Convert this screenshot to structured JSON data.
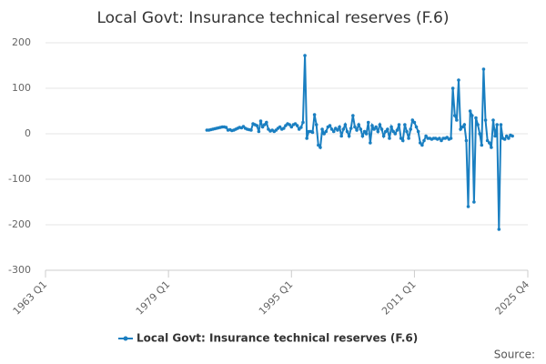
{
  "chart_data": {
    "type": "line",
    "title": "Local Govt: Insurance technical reserves (F.6)",
    "source": "Source:",
    "xlim": [
      "1963 Q1",
      "2025 Q4"
    ],
    "xticks": [
      "1963 Q1",
      "1979 Q1",
      "1995 Q1",
      "2011 Q1",
      "2025 Q4"
    ],
    "ylim": [
      -300,
      200
    ],
    "yticks": [
      200,
      100,
      0,
      -100,
      -200,
      -300
    ],
    "grid": true,
    "legend": "bottom",
    "x": [
      "1984 Q1",
      "1984 Q2",
      "1984 Q3",
      "1984 Q4",
      "1985 Q1",
      "1985 Q2",
      "1985 Q3",
      "1985 Q4",
      "1986 Q1",
      "1986 Q2",
      "1986 Q3",
      "1986 Q4",
      "1987 Q1",
      "1987 Q2",
      "1987 Q3",
      "1987 Q4",
      "1988 Q1",
      "1988 Q2",
      "1988 Q3",
      "1988 Q4",
      "1989 Q1",
      "1989 Q2",
      "1989 Q3",
      "1989 Q4",
      "1990 Q1",
      "1990 Q2",
      "1990 Q3",
      "1990 Q4",
      "1991 Q1",
      "1991 Q2",
      "1991 Q3",
      "1991 Q4",
      "1992 Q1",
      "1992 Q2",
      "1992 Q3",
      "1992 Q4",
      "1993 Q1",
      "1993 Q2",
      "1993 Q3",
      "1993 Q4",
      "1994 Q1",
      "1994 Q2",
      "1994 Q3",
      "1994 Q4",
      "1995 Q1",
      "1995 Q2",
      "1995 Q3",
      "1995 Q4",
      "1996 Q1",
      "1996 Q2",
      "1996 Q3",
      "1996 Q4",
      "1997 Q1",
      "1997 Q2",
      "1997 Q3",
      "1997 Q4",
      "1998 Q1",
      "1998 Q2",
      "1998 Q3",
      "1998 Q4",
      "1999 Q1",
      "1999 Q2",
      "1999 Q3",
      "1999 Q4",
      "2000 Q1",
      "2000 Q2",
      "2000 Q3",
      "2000 Q4",
      "2001 Q1",
      "2001 Q2",
      "2001 Q3",
      "2001 Q4",
      "2002 Q1",
      "2002 Q2",
      "2002 Q3",
      "2002 Q4",
      "2003 Q1",
      "2003 Q2",
      "2003 Q3",
      "2003 Q4",
      "2004 Q1",
      "2004 Q2",
      "2004 Q3",
      "2004 Q4",
      "2005 Q1",
      "2005 Q2",
      "2005 Q3",
      "2005 Q4",
      "2006 Q1",
      "2006 Q2",
      "2006 Q3",
      "2006 Q4",
      "2007 Q1",
      "2007 Q2",
      "2007 Q3",
      "2007 Q4",
      "2008 Q1",
      "2008 Q2",
      "2008 Q3",
      "2008 Q4",
      "2009 Q1",
      "2009 Q2",
      "2009 Q3",
      "2009 Q4",
      "2010 Q1",
      "2010 Q2",
      "2010 Q3",
      "2010 Q4",
      "2011 Q1",
      "2011 Q2",
      "2011 Q3",
      "2011 Q4",
      "2012 Q1",
      "2012 Q2",
      "2012 Q3",
      "2012 Q4",
      "2013 Q1",
      "2013 Q2",
      "2013 Q3",
      "2013 Q4",
      "2014 Q1",
      "2014 Q2",
      "2014 Q3",
      "2014 Q4",
      "2015 Q1",
      "2015 Q2",
      "2015 Q3",
      "2015 Q4",
      "2016 Q1",
      "2016 Q2",
      "2016 Q3",
      "2016 Q4",
      "2017 Q1",
      "2017 Q2",
      "2017 Q3",
      "2017 Q4",
      "2018 Q1",
      "2018 Q2",
      "2018 Q3",
      "2018 Q4",
      "2019 Q1",
      "2019 Q2",
      "2019 Q3",
      "2019 Q4",
      "2020 Q1",
      "2020 Q2",
      "2020 Q3",
      "2020 Q4",
      "2021 Q1",
      "2021 Q2",
      "2021 Q3",
      "2021 Q4",
      "2022 Q1",
      "2022 Q2",
      "2022 Q3",
      "2022 Q4",
      "2023 Q1",
      "2023 Q2",
      "2023 Q3",
      "2023 Q4"
    ],
    "series": [
      {
        "name": "Local Govt: Insurance technical reserves (F.6)",
        "color": "#1a7fc1",
        "values": [
          8,
          8,
          9,
          10,
          11,
          12,
          13,
          14,
          15,
          15,
          14,
          8,
          9,
          7,
          8,
          10,
          12,
          14,
          13,
          16,
          12,
          10,
          9,
          8,
          22,
          20,
          18,
          5,
          28,
          15,
          20,
          25,
          10,
          6,
          8,
          5,
          8,
          12,
          15,
          10,
          12,
          18,
          22,
          20,
          15,
          20,
          22,
          18,
          10,
          14,
          25,
          172,
          -10,
          5,
          5,
          3,
          42,
          20,
          -25,
          -30,
          10,
          0,
          5,
          15,
          18,
          10,
          5,
          12,
          8,
          15,
          -5,
          10,
          20,
          5,
          -5,
          12,
          40,
          15,
          8,
          20,
          10,
          -5,
          5,
          0,
          25,
          -20,
          18,
          10,
          15,
          5,
          20,
          10,
          -5,
          5,
          10,
          -10,
          15,
          5,
          0,
          8,
          20,
          -10,
          -15,
          20,
          5,
          -10,
          10,
          30,
          25,
          15,
          5,
          -20,
          -25,
          -15,
          -5,
          -10,
          -10,
          -12,
          -10,
          -10,
          -12,
          -10,
          -15,
          -10,
          -10,
          -8,
          -12,
          -10,
          100,
          40,
          30,
          118,
          10,
          15,
          20,
          -15,
          -160,
          50,
          40,
          -150,
          35,
          20,
          0,
          -25,
          142,
          30,
          -15,
          -20,
          -30,
          30,
          -5,
          20,
          -210,
          20,
          -10,
          -12,
          -5,
          -10,
          -3,
          -5
        ]
      }
    ]
  }
}
